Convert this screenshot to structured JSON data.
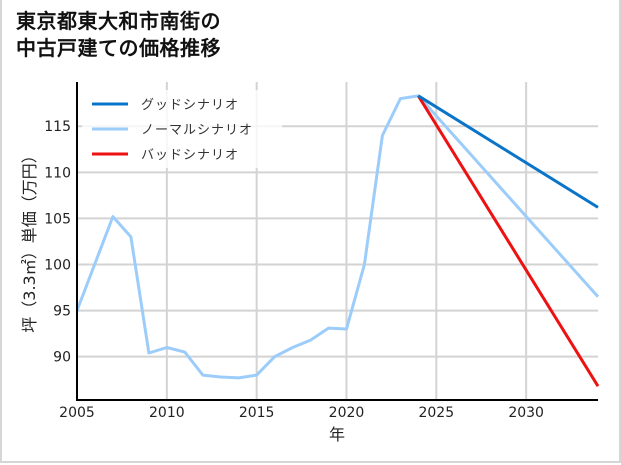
{
  "title": "東京都東大和市南街の\n中古戸建ての価格推移",
  "colors": {
    "good": "#0a74c9",
    "normal": "#9ccdfa",
    "bad": "#ee1111",
    "grid": "#d3d3d3",
    "axis": "#000000"
  },
  "chart_data": {
    "type": "line",
    "title": "東京都東大和市南街の中古戸建ての価格推移",
    "xlabel": "年",
    "ylabel": "坪（3.3㎡）単価（万円）",
    "xlim": [
      2005,
      2034
    ],
    "ylim": [
      85.3,
      119.8
    ],
    "xticks": [
      2005,
      2010,
      2015,
      2020,
      2025,
      2030
    ],
    "yticks": [
      90,
      95,
      100,
      105,
      110,
      115
    ],
    "grid": true,
    "legend_position": "upper left",
    "series": [
      {
        "name": "グッドシナリオ",
        "color": "#0a74c9",
        "x": [
          2024,
          2034
        ],
        "y": [
          118.3,
          106.2
        ]
      },
      {
        "name": "ノーマルシナリオ",
        "color": "#9ccdfa",
        "x": [
          2005,
          2007,
          2008,
          2009,
          2010,
          2011,
          2012,
          2013,
          2014,
          2015,
          2016,
          2017,
          2018,
          2019,
          2020,
          2021,
          2022,
          2023,
          2024,
          2034
        ],
        "y": [
          95.0,
          105.2,
          103.0,
          90.4,
          91.0,
          90.5,
          88.0,
          87.8,
          87.7,
          88.0,
          90.0,
          91.0,
          91.8,
          93.1,
          93.0,
          100.0,
          114.0,
          118.0,
          118.3,
          96.5
        ]
      },
      {
        "name": "バッドシナリオ",
        "color": "#ee1111",
        "x": [
          2024,
          2034
        ],
        "y": [
          118.3,
          86.8
        ]
      }
    ]
  }
}
